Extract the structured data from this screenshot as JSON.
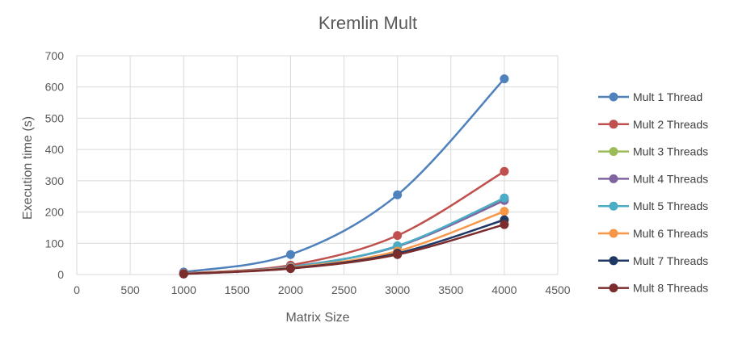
{
  "chart_data": {
    "type": "scatter",
    "title": "Kremlin Mult",
    "xlabel": "Matrix Size",
    "ylabel": "Execution time (s)",
    "xlim": [
      0,
      4500
    ],
    "ylim": [
      0,
      700
    ],
    "xticks": [
      0,
      500,
      1000,
      1500,
      2000,
      2500,
      3000,
      3500,
      4000,
      4500
    ],
    "yticks": [
      0,
      100,
      200,
      300,
      400,
      500,
      600,
      700
    ],
    "grid": true,
    "smooth_lines": true,
    "legend_position": "right",
    "x": [
      1000,
      2000,
      3000,
      4000
    ],
    "series": [
      {
        "name": "Mult 1 Thread",
        "color": "#4f81bd",
        "values": [
          8,
          64,
          255,
          626
        ]
      },
      {
        "name": "Mult 2 Threads",
        "color": "#c0504d",
        "values": [
          4,
          30,
          125,
          330
        ]
      },
      {
        "name": "Mult 3 Threads",
        "color": "#9bbb59",
        "values": [
          3,
          25,
          90,
          240
        ]
      },
      {
        "name": "Mult 4 Threads",
        "color": "#8064a2",
        "values": [
          3,
          25,
          90,
          237
        ]
      },
      {
        "name": "Mult 5 Threads",
        "color": "#4bacc6",
        "values": [
          3,
          24,
          92,
          245
        ]
      },
      {
        "name": "Mult 6 Threads",
        "color": "#f79646",
        "values": [
          3,
          22,
          75,
          202
        ]
      },
      {
        "name": "Mult 7 Threads",
        "color": "#1f3864",
        "values": [
          2,
          20,
          68,
          175
        ]
      },
      {
        "name": "Mult 8 Threads",
        "color": "#7b2c2c",
        "values": [
          2,
          19,
          64,
          160
        ]
      }
    ]
  }
}
